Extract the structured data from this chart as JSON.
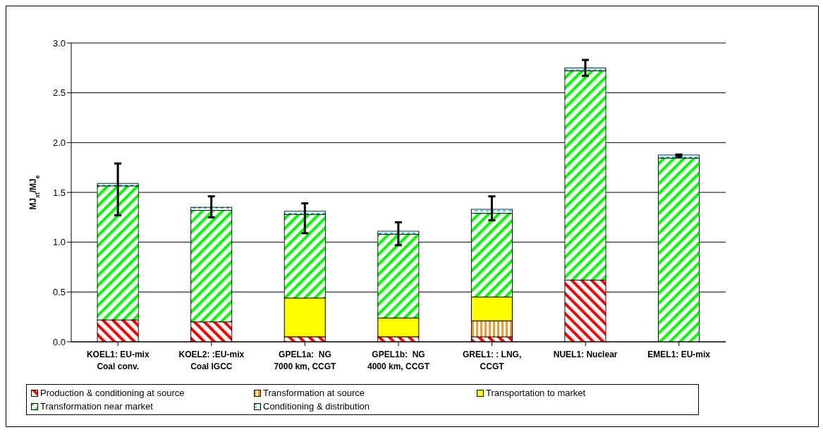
{
  "chart_data": {
    "type": "bar",
    "stacked": true,
    "ylabel": "MJ$_{xt}$/MJ$_{e}$",
    "categories": [
      "KOEL1: EU-mix\nCoal conv.",
      "KOEL2: :EU-mix\nCoal IGCC",
      "GPEL1a:  NG\n7000 km, CCGT",
      "GPEL1b:  NG\n4000 km, CCGT",
      "GREL1: : LNG,\nCCGT",
      "NUEL1: Nuclear",
      "EMEL1: EU-mix"
    ],
    "series": [
      {
        "name": "Production & conditioning at source",
        "color": "#ff0000",
        "values": [
          0.22,
          0.2,
          0.05,
          0.05,
          0.05,
          0.62,
          null
        ]
      },
      {
        "name": "Transformation at source",
        "color": "#ff9900",
        "values": [
          null,
          null,
          null,
          null,
          0.16,
          null,
          null
        ]
      },
      {
        "name": "Transportation to market",
        "color": "#ffff00",
        "values": [
          null,
          null,
          0.39,
          0.19,
          0.24,
          null,
          null
        ]
      },
      {
        "name": "Transformation near market",
        "color": "#00ff00",
        "values": [
          1.345,
          1.12,
          0.84,
          0.84,
          0.84,
          2.1,
          1.845
        ]
      },
      {
        "name": "Conditioning & distribution",
        "color": "#33ccff",
        "values": [
          0.025,
          0.03,
          0.03,
          0.03,
          0.04,
          0.03,
          0.03
        ],
        "errors": [
          [
            1.27,
            1.79
          ],
          [
            1.25,
            1.46
          ],
          [
            1.09,
            1.39
          ],
          [
            0.97,
            1.2
          ],
          [
            1.22,
            1.46
          ],
          [
            2.67,
            2.83
          ],
          [
            1.86,
            1.88
          ]
        ]
      }
    ],
    "ylim": [
      0,
      3
    ],
    "yticks": [
      {
        "value": 0,
        "label": "0.0"
      },
      {
        "value": 0.5,
        "label": "0.5"
      },
      {
        "value": 1,
        "label": "1.0"
      },
      {
        "value": 1.5,
        "label": "1.5"
      },
      {
        "value": 2,
        "label": "2.0"
      },
      {
        "value": 2.5,
        "label": "2.5"
      },
      {
        "value": 3,
        "label": "3.0"
      }
    ],
    "grid": "y",
    "legend": "bottom"
  }
}
